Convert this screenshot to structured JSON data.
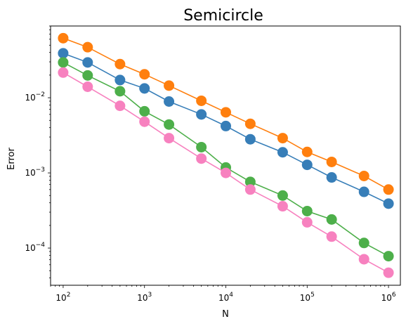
{
  "chart_data": {
    "type": "line",
    "title": "Semicircle",
    "xlabel": "N",
    "ylabel": "Error",
    "xscale": "log",
    "yscale": "log",
    "xlim": [
      70,
      1400000
    ],
    "ylim": [
      3.2e-05,
      0.09
    ],
    "grid": false,
    "legend": "none",
    "x": [
      100,
      200,
      500,
      1000,
      2000,
      5000,
      10000,
      20000,
      50000,
      100000,
      200000,
      500000,
      1000000
    ],
    "x_ticks": [
      {
        "base": "10",
        "exp": "2",
        "value": 100
      },
      {
        "base": "10",
        "exp": "3",
        "value": 1000
      },
      {
        "base": "10",
        "exp": "4",
        "value": 10000
      },
      {
        "base": "10",
        "exp": "5",
        "value": 100000
      },
      {
        "base": "10",
        "exp": "6",
        "value": 1000000
      }
    ],
    "y_ticks": [
      {
        "base": "10",
        "exp": "−4",
        "value": 0.0001
      },
      {
        "base": "10",
        "exp": "−3",
        "value": 0.001
      },
      {
        "base": "10",
        "exp": "−2",
        "value": 0.01
      }
    ],
    "series": [
      {
        "color": "#ff7f0e",
        "values": [
          0.062,
          0.047,
          0.028,
          0.0205,
          0.0145,
          0.0091,
          0.0064,
          0.0045,
          0.0029,
          0.0019,
          0.0014,
          0.00091,
          0.0006
        ]
      },
      {
        "color": "#377eb8",
        "values": [
          0.039,
          0.0295,
          0.0172,
          0.0133,
          0.0089,
          0.006,
          0.0042,
          0.0028,
          0.00188,
          0.00128,
          0.00087,
          0.00056,
          0.00039
        ]
      },
      {
        "color": "#4daf4a",
        "values": [
          0.0295,
          0.0198,
          0.0122,
          0.0066,
          0.0044,
          0.0022,
          0.00118,
          0.00076,
          0.0005,
          0.00031,
          0.00024,
          0.000117,
          7.8e-05
        ]
      },
      {
        "color": "#f781bf",
        "values": [
          0.0216,
          0.014,
          0.0078,
          0.0048,
          0.0029,
          0.00155,
          0.001,
          0.0006,
          0.00036,
          0.00022,
          0.000142,
          7.1e-05,
          4.7e-05
        ]
      }
    ]
  }
}
